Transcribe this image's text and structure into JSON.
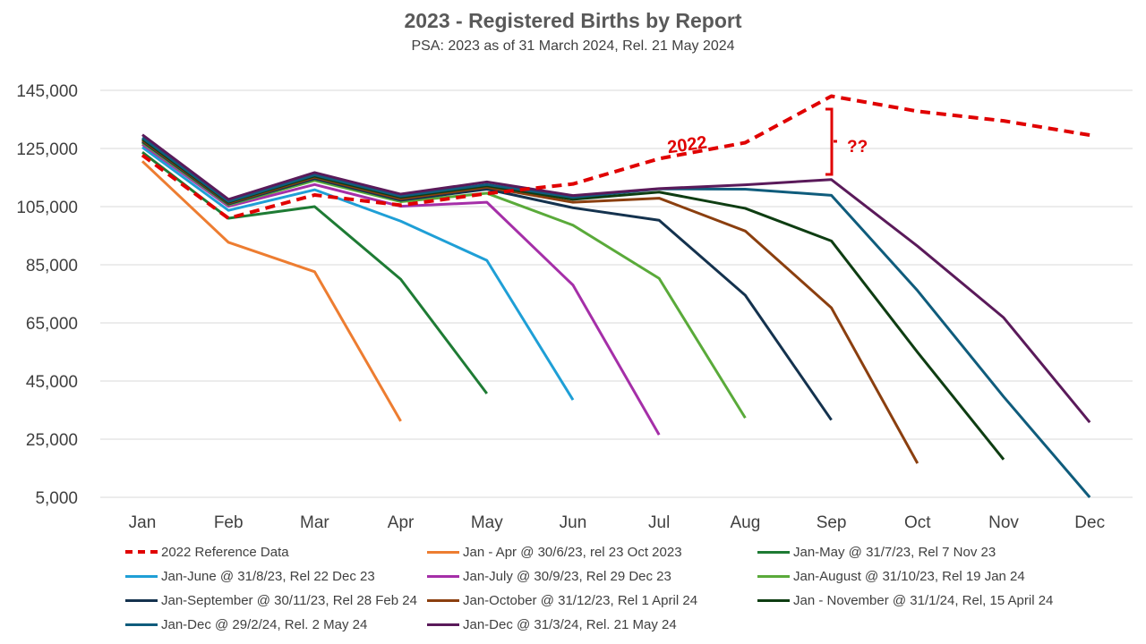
{
  "chart_data": {
    "type": "line",
    "title": "2023 - Registered Births by Report",
    "subtitle": "PSA: 2023 as of 31 March 2024, Rel. 21 May 2024",
    "categories": [
      "Jan",
      "Feb",
      "Mar",
      "Apr",
      "May",
      "Jun",
      "Jul",
      "Aug",
      "Sep",
      "Oct",
      "Nov",
      "Dec"
    ],
    "ylim": [
      5000,
      145000
    ],
    "yticks": [
      "145,000",
      "125,000",
      "105,000",
      "85,000",
      "65,000",
      "45,000",
      "25,000",
      "5,000"
    ],
    "ytick_values": [
      145000,
      125000,
      105000,
      85000,
      65000,
      45000,
      25000,
      5000
    ],
    "grid": true,
    "legend_position": "bottom",
    "series": [
      {
        "name": "2022 Reference Data",
        "color": "#e00000",
        "dashed": true,
        "values": [
          122700,
          101000,
          109000,
          105500,
          109500,
          112800,
          121500,
          127000,
          143000,
          137800,
          134500,
          129600
        ]
      },
      {
        "name": "Jan - Apr @ 30/6/23, rel 23 Oct 2023",
        "color": "#ed7d31",
        "values": [
          120600,
          92700,
          82600,
          31200,
          null,
          null,
          null,
          null,
          null,
          null,
          null,
          null
        ]
      },
      {
        "name": "Jan-May @ 31/7/23, Rel 7 Nov 23",
        "color": "#1e7b34",
        "values": [
          123700,
          101000,
          105000,
          80000,
          40700,
          null,
          null,
          null,
          null,
          null,
          null,
          null
        ]
      },
      {
        "name": "Jan-June @ 31/8/23, Rel 22 Dec 23",
        "color": "#1f9fd6",
        "values": [
          125400,
          103700,
          110800,
          100000,
          86500,
          38500,
          null,
          null,
          null,
          null,
          null,
          null
        ]
      },
      {
        "name": "Jan-July @ 30/9/23, Rel 29 Dec 23",
        "color": "#a52fa8",
        "values": [
          126400,
          105100,
          112600,
          105100,
          106500,
          78000,
          26500,
          null,
          null,
          null,
          null,
          null
        ]
      },
      {
        "name": "Jan-August @ 31/10/23, Rel 19 Jan 24",
        "color": "#5aaa3a",
        "values": [
          127000,
          105600,
          114000,
          106700,
          109600,
          98600,
          80300,
          32300,
          null,
          null,
          null,
          null
        ]
      },
      {
        "name": "Jan-September @ 30/11/23, Rel 28 Feb 24",
        "color": "#14324e",
        "values": [
          127400,
          105900,
          114600,
          107200,
          111000,
          104600,
          100300,
          74500,
          31600,
          null,
          null,
          null
        ]
      },
      {
        "name": "Jan-October @ 31/12/23, Rel 1 April 24",
        "color": "#8b3f0f",
        "values": [
          127800,
          106200,
          115100,
          107700,
          111700,
          106500,
          107900,
          96600,
          70200,
          16700,
          null,
          null
        ]
      },
      {
        "name": "Jan - November @ 31/1/24, Rel, 15 April 24",
        "color": "#0e3d12",
        "values": [
          128200,
          106500,
          115500,
          108200,
          112200,
          107500,
          110000,
          104400,
          93200,
          54900,
          18000,
          null
        ]
      },
      {
        "name": "Jan-Dec @ 29/2/24, Rel. 2 May 24",
        "color": "#0f5c7c",
        "values": [
          128700,
          106800,
          115900,
          108600,
          112600,
          108200,
          111100,
          111000,
          108900,
          76100,
          39600,
          5000
        ]
      },
      {
        "name": "Jan-Dec @ 31/3/24, Rel. 21 May 24",
        "color": "#5a1a5a",
        "values": [
          129700,
          107500,
          116700,
          109300,
          113500,
          108800,
          111200,
          112500,
          114300,
          91400,
          66800,
          30800
        ]
      }
    ],
    "annotations": {
      "label_2022": "2022",
      "label_gap": "??"
    }
  }
}
